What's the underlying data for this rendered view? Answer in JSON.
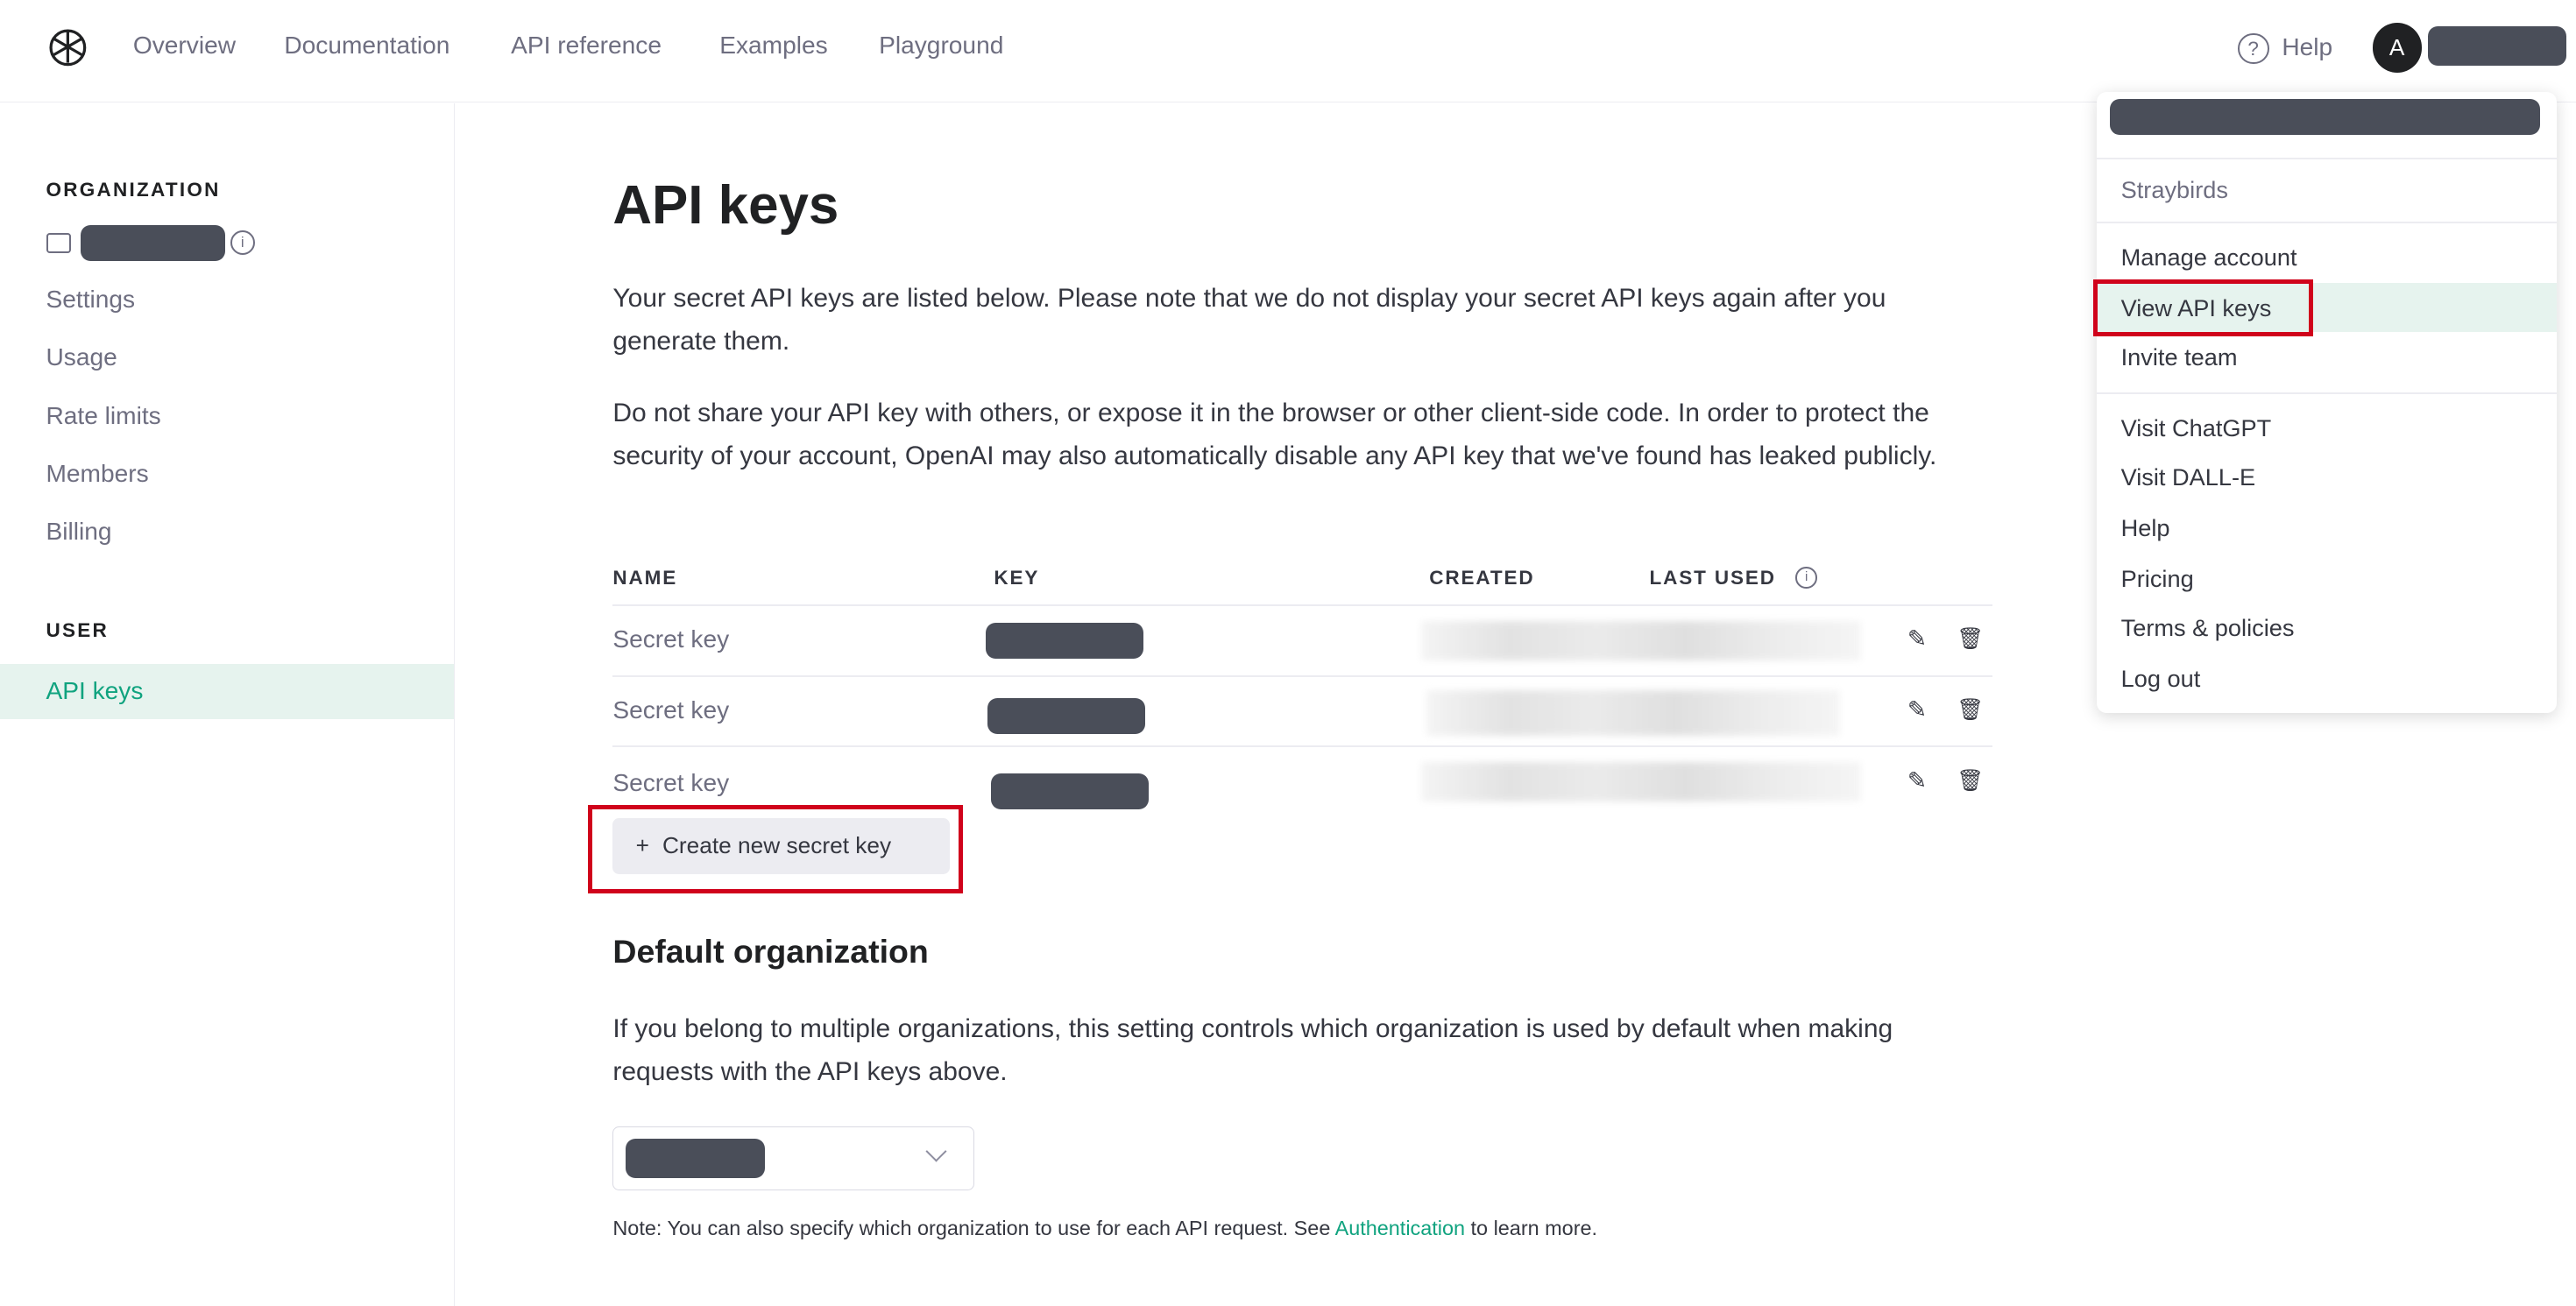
{
  "nav": {
    "items": [
      "Overview",
      "Documentation",
      "API reference",
      "Examples",
      "Playground"
    ],
    "help_label": "Help",
    "avatar_initial": "A"
  },
  "sidebar": {
    "org_heading": "ORGANIZATION",
    "org_items": [
      "Settings",
      "Usage",
      "Rate limits",
      "Members",
      "Billing"
    ],
    "user_heading": "USER",
    "user_items": [
      "API keys"
    ]
  },
  "main": {
    "title": "API keys",
    "para1": "Your secret API keys are listed below. Please note that we do not display your secret API keys again after you generate them.",
    "para2": "Do not share your API key with others, or expose it in the browser or other client-side code. In order to protect the security of your account, OpenAI may also automatically disable any API key that we've found has leaked publicly.",
    "table": {
      "headers": [
        "NAME",
        "KEY",
        "CREATED",
        "LAST USED"
      ],
      "rows": [
        {
          "name": "Secret key"
        },
        {
          "name": "Secret key"
        },
        {
          "name": "Secret key"
        }
      ]
    },
    "create_button": "Create new secret key",
    "default_org_title": "Default organization",
    "default_org_text": "If you belong to multiple organizations, this setting controls which organization is used by default when making requests with the API keys above.",
    "note_prefix": "Note: You can also specify which organization to use for each API request. See ",
    "note_link": "Authentication",
    "note_suffix": " to learn more."
  },
  "menu": {
    "org_name": "Straybirds",
    "items_group1": [
      "Manage account",
      "View API keys",
      "Invite team"
    ],
    "items_group2": [
      "Visit ChatGPT",
      "Visit DALL-E",
      "Help",
      "Pricing",
      "Terms & policies",
      "Log out"
    ],
    "highlighted": "View API keys"
  },
  "colors": {
    "accent": "#10a37f",
    "highlight_box": "#d0021b",
    "active_bg": "#e6f3ee"
  }
}
